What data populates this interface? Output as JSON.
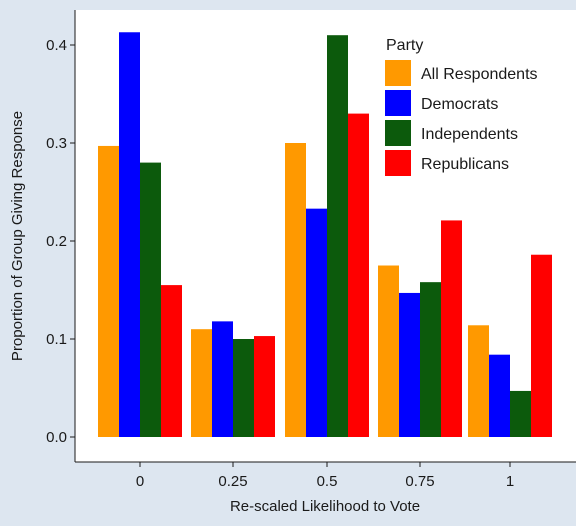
{
  "chart_data": {
    "type": "bar",
    "title": "",
    "xlabel": "Re-scaled Likelihood to Vote",
    "ylabel": "Proportion of Group Giving Response",
    "categories": [
      "0",
      "0.25",
      "0.5",
      "0.75",
      "1"
    ],
    "ylim": [
      0,
      0.42
    ],
    "yticks": [
      0.0,
      0.1,
      0.2,
      0.3,
      0.4
    ],
    "ytick_labels": [
      "0.0",
      "0.1",
      "0.2",
      "0.3",
      "0.4"
    ],
    "grid": false,
    "legend": {
      "title": "Party",
      "placement": "top-right"
    },
    "series": [
      {
        "name": "All Respondents",
        "color": "#ff9900",
        "values": [
          0.297,
          0.11,
          0.3,
          0.175,
          0.114
        ]
      },
      {
        "name": "Democrats",
        "color": "#0000ff",
        "values": [
          0.413,
          0.118,
          0.233,
          0.147,
          0.084
        ]
      },
      {
        "name": "Independents",
        "color": "#0c5a0c",
        "values": [
          0.28,
          0.1,
          0.41,
          0.158,
          0.047
        ]
      },
      {
        "name": "Republicans",
        "color": "#ff0000",
        "values": [
          0.155,
          0.103,
          0.33,
          0.221,
          0.186
        ]
      }
    ]
  }
}
